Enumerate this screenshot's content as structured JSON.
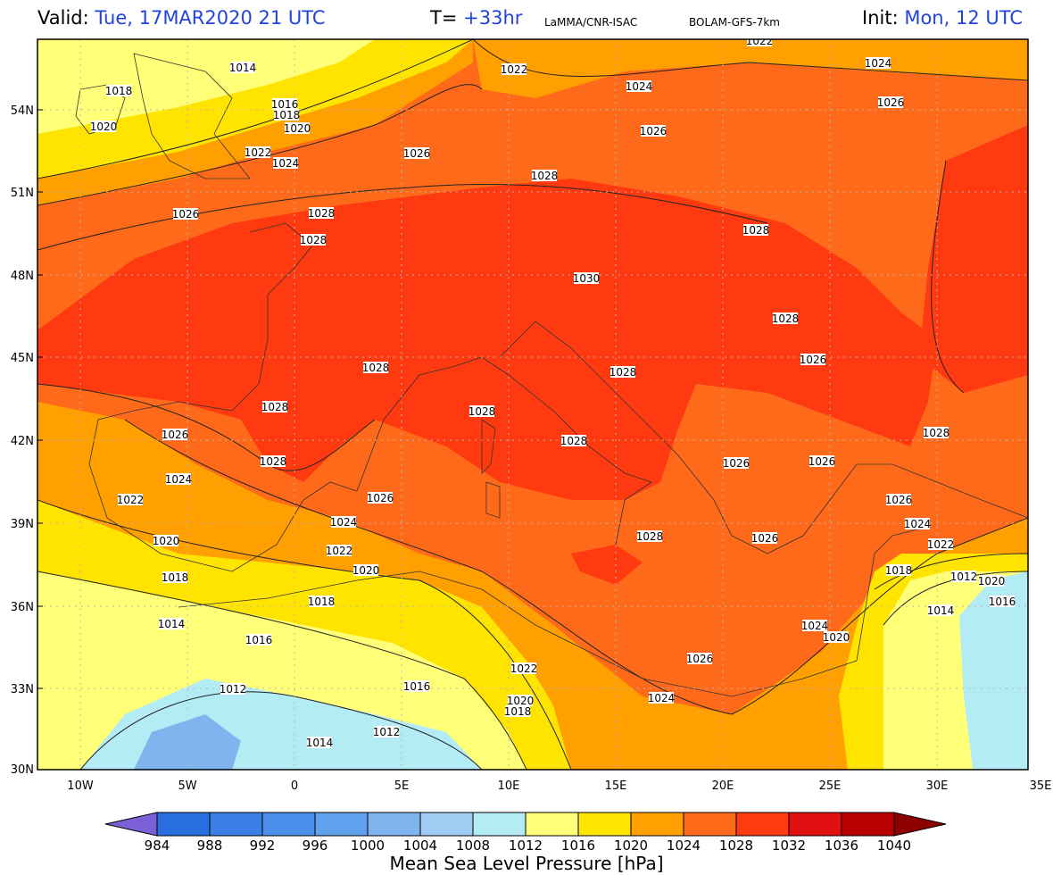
{
  "header": {
    "valid_label": "Valid:",
    "valid_value": "Tue, 17MAR2020  21 UTC",
    "t_label": "T=",
    "t_value": "+33hr",
    "source": "LaMMA/CNR-ISAC",
    "model": "BOLAM-GFS-7km",
    "init_label": "Init:",
    "init_value": "Mon, 12 UTC"
  },
  "axes": {
    "lon_ticks": [
      "10W",
      "5W",
      "0",
      "5E",
      "10E",
      "15E",
      "20E",
      "25E",
      "30E",
      "35E"
    ],
    "lat_ticks": [
      "54N",
      "51N",
      "48N",
      "45N",
      "42N",
      "39N",
      "36N",
      "33N",
      "30N"
    ]
  },
  "isobar_labels": [
    "1014",
    "1016",
    "1018",
    "1020",
    "1022",
    "1024",
    "1026",
    "1028",
    "1030",
    "1012"
  ],
  "colorbar": {
    "title": "Mean Sea Level Pressure [hPa]",
    "ticks": [
      "984",
      "988",
      "992",
      "996",
      "1000",
      "1004",
      "1008",
      "1012",
      "1016",
      "1020",
      "1024",
      "1028",
      "1032",
      "1036",
      "1040"
    ],
    "colors": [
      "#7a5fd6",
      "#2a6fe0",
      "#3a80e8",
      "#4a90ea",
      "#5fa1ec",
      "#80b4ef",
      "#a0cdf3",
      "#b4ecf5",
      "#ffff78",
      "#ffe400",
      "#ffa000",
      "#ff6a1a",
      "#ff3a10",
      "#e01010",
      "#b80000",
      "#8c0000"
    ]
  },
  "map_colors": {
    "c1040": "#c40000",
    "c1032": "#ff3a10",
    "c1028": "#ff6a1a",
    "c1024": "#ffa000",
    "c1020": "#ffe400",
    "c1016": "#ffff78",
    "c1012": "#b4ecf5",
    "c1008": "#a0cdf3",
    "c1004": "#80b4ef"
  }
}
